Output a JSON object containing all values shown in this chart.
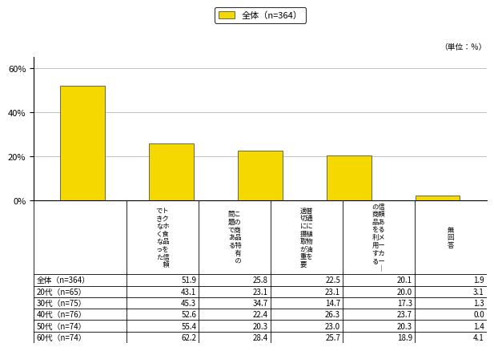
{
  "legend_label": "全体（n=364）",
  "unit_label": "（単位：％）",
  "bar_values": [
    51.9,
    25.8,
    22.5,
    20.1,
    1.9
  ],
  "bar_color": "#F5D800",
  "yticks": [
    0,
    20,
    40,
    60
  ],
  "ylim": [
    0,
    65
  ],
  "col_headers": [
    "でト\nきク\nなホ\nく食\nな品\nっを\nた信\n　頼",
    "問こ\n題の\nで商\nあ品\nる特\n　有\n　の",
    "適普\n切通\nにに\n摄植\n取物\nが油\n重を\n要　",
    "の信\n商頼\n品あ\nをる\n利メ\n用ー\nすカ\nるー\n　｜",
    "無\n回\n答"
  ],
  "table_rows": [
    [
      "全体（n=364）",
      51.9,
      25.8,
      22.5,
      20.1,
      1.9
    ],
    [
      "20代（n=65）",
      43.1,
      23.1,
      23.1,
      20.0,
      3.1
    ],
    [
      "30代（n=75）",
      45.3,
      34.7,
      14.7,
      17.3,
      1.3
    ],
    [
      "40代（n=76）",
      52.6,
      22.4,
      26.3,
      23.7,
      0.0
    ],
    [
      "50代（n=74）",
      55.4,
      20.3,
      23.0,
      20.3,
      1.4
    ],
    [
      "60代（n=74）",
      62.2,
      28.4,
      25.7,
      18.9,
      4.1
    ]
  ]
}
